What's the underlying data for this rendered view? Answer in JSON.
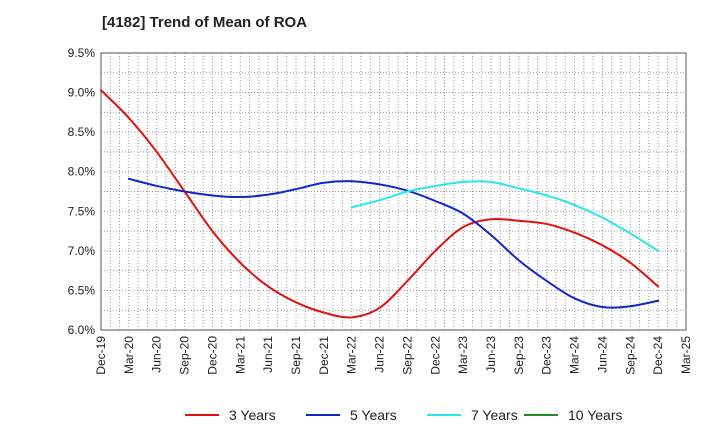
{
  "chart_data": {
    "type": "line",
    "title": "[4182]  Trend of Mean of ROA",
    "xlabel": "",
    "ylabel": "",
    "x_ticks": [
      "Dec-19",
      "Mar-20",
      "Jun-20",
      "Sep-20",
      "Dec-20",
      "Mar-21",
      "Jun-21",
      "Sep-21",
      "Dec-21",
      "Mar-22",
      "Jun-22",
      "Sep-22",
      "Dec-22",
      "Mar-23",
      "Jun-23",
      "Sep-23",
      "Dec-23",
      "Mar-24",
      "Jun-24",
      "Sep-24",
      "Dec-24",
      "Mar-25"
    ],
    "y_ticks": [
      "6.0%",
      "6.5%",
      "7.0%",
      "7.5%",
      "8.0%",
      "8.5%",
      "9.0%",
      "9.5%"
    ],
    "ylim": [
      6.0,
      9.5
    ],
    "grid": true,
    "legend_position": "bottom",
    "series": [
      {
        "name": "3 Years",
        "color": "#e0120f",
        "points": [
          [
            "Dec-19",
            9.03
          ],
          [
            "Mar-20",
            8.68
          ],
          [
            "Jun-20",
            8.25
          ],
          [
            "Sep-20",
            7.75
          ],
          [
            "Dec-20",
            7.25
          ],
          [
            "Mar-21",
            6.85
          ],
          [
            "Jun-21",
            6.55
          ],
          [
            "Sep-21",
            6.35
          ],
          [
            "Dec-21",
            6.22
          ],
          [
            "Mar-22",
            6.16
          ],
          [
            "Jun-22",
            6.28
          ],
          [
            "Sep-22",
            6.62
          ],
          [
            "Dec-22",
            7.0
          ],
          [
            "Mar-23",
            7.3
          ],
          [
            "Jun-23",
            7.4
          ],
          [
            "Sep-23",
            7.38
          ],
          [
            "Dec-23",
            7.34
          ],
          [
            "Mar-24",
            7.23
          ],
          [
            "Jun-24",
            7.07
          ],
          [
            "Sep-24",
            6.85
          ],
          [
            "Dec-24",
            6.55
          ]
        ]
      },
      {
        "name": "5 Years",
        "color": "#1028c8",
        "points": [
          [
            "Mar-20",
            7.91
          ],
          [
            "Jun-20",
            7.82
          ],
          [
            "Sep-20",
            7.75
          ],
          [
            "Dec-20",
            7.7
          ],
          [
            "Mar-21",
            7.68
          ],
          [
            "Jun-21",
            7.71
          ],
          [
            "Sep-21",
            7.78
          ],
          [
            "Dec-21",
            7.86
          ],
          [
            "Mar-22",
            7.88
          ],
          [
            "Jun-22",
            7.84
          ],
          [
            "Sep-22",
            7.76
          ],
          [
            "Dec-22",
            7.63
          ],
          [
            "Mar-23",
            7.47
          ],
          [
            "Jun-23",
            7.2
          ],
          [
            "Sep-23",
            6.88
          ],
          [
            "Dec-23",
            6.62
          ],
          [
            "Mar-24",
            6.4
          ],
          [
            "Jun-24",
            6.29
          ],
          [
            "Sep-24",
            6.3
          ],
          [
            "Dec-24",
            6.37
          ]
        ]
      },
      {
        "name": "7 Years",
        "color": "#28e6f0",
        "points": [
          [
            "Mar-22",
            7.55
          ],
          [
            "Jun-22",
            7.64
          ],
          [
            "Sep-22",
            7.75
          ],
          [
            "Dec-22",
            7.82
          ],
          [
            "Mar-23",
            7.87
          ],
          [
            "Jun-23",
            7.87
          ],
          [
            "Sep-23",
            7.79
          ],
          [
            "Dec-23",
            7.7
          ],
          [
            "Mar-24",
            7.58
          ],
          [
            "Jun-24",
            7.42
          ],
          [
            "Sep-24",
            7.22
          ],
          [
            "Dec-24",
            7.0
          ]
        ]
      },
      {
        "name": "10 Years",
        "color": "#228b22",
        "points": []
      }
    ]
  }
}
